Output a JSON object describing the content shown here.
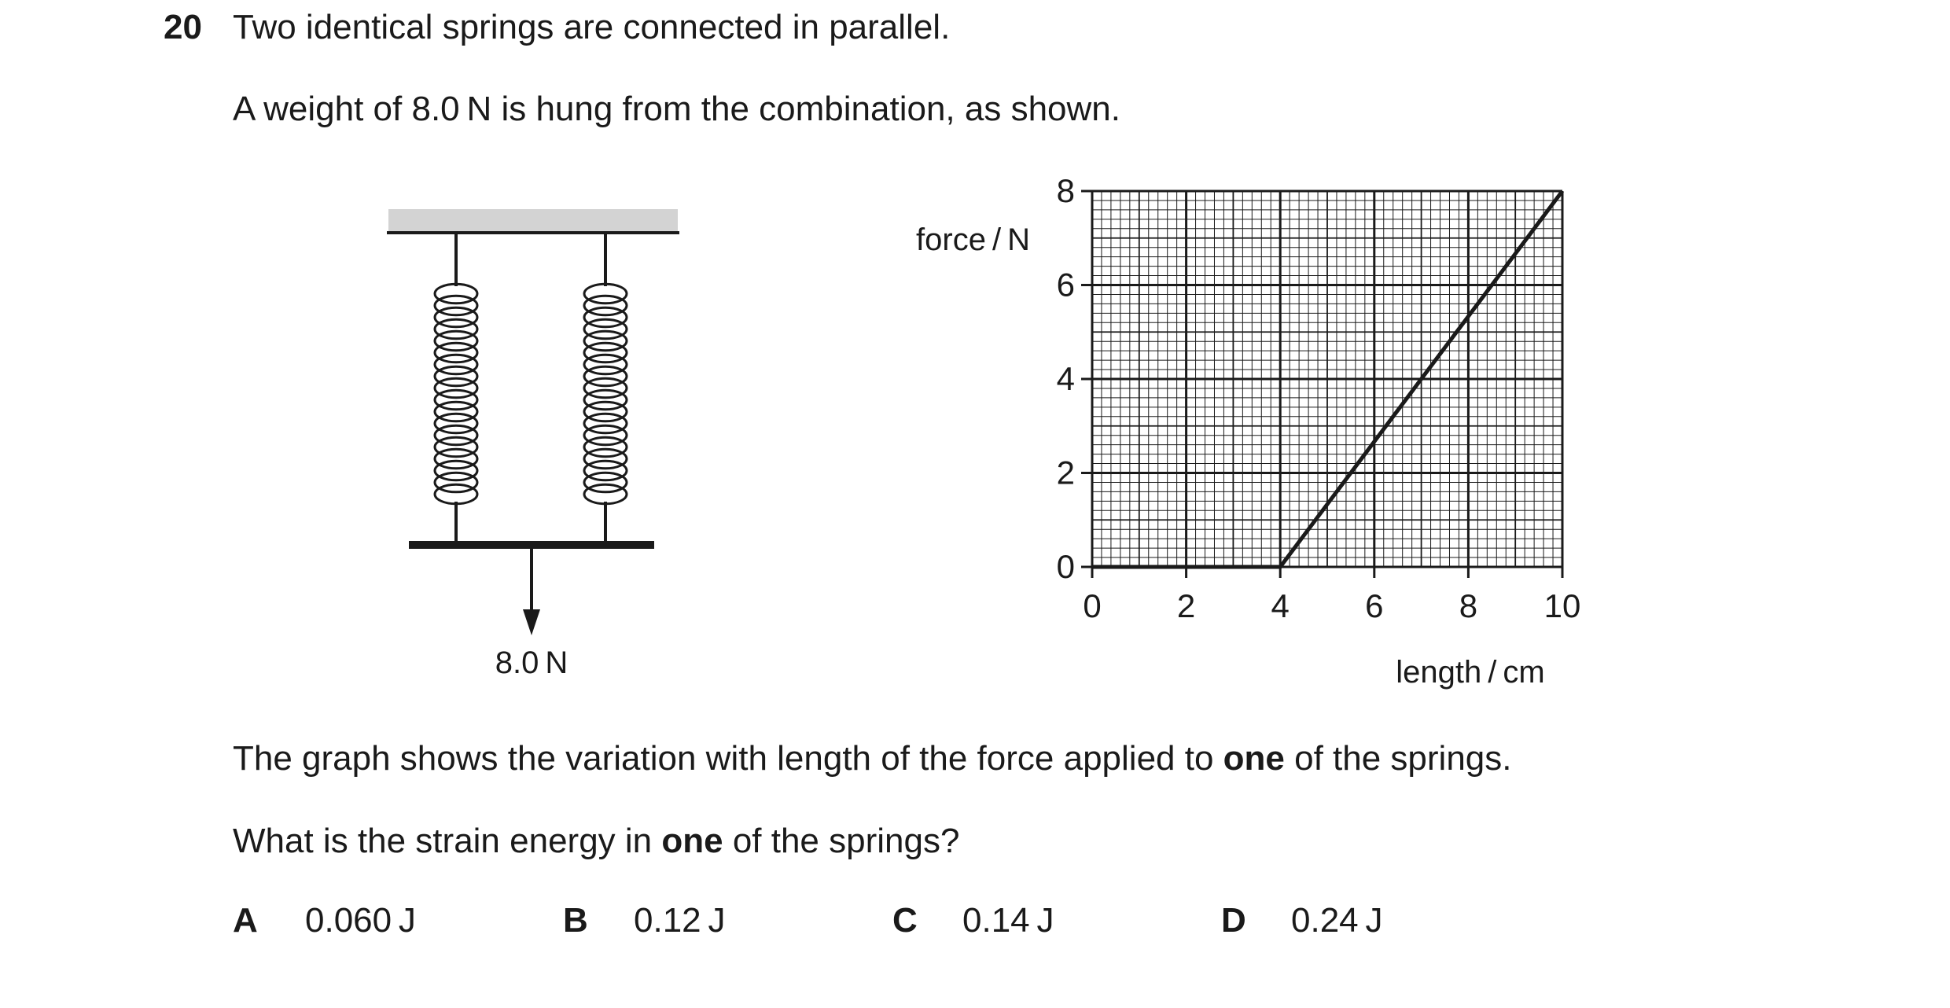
{
  "question": {
    "number": "20",
    "line1": "Two identical springs are connected in parallel.",
    "line2": "A weight of 8.0 N is hung from the combination, as shown.",
    "line3_pre": "The graph shows the variation with length of the force applied to ",
    "line3_bold": "one",
    "line3_post": " of the springs.",
    "line4_pre": "What is the strain energy in ",
    "line4_bold": "one",
    "line4_post": " of the springs?"
  },
  "diagram": {
    "weight_label": "8.0 N"
  },
  "options": [
    {
      "letter": "A",
      "value": "0.060 J"
    },
    {
      "letter": "B",
      "value": "0.12 J"
    },
    {
      "letter": "C",
      "value": "0.14 J"
    },
    {
      "letter": "D",
      "value": "0.24 J"
    }
  ],
  "chart_data": {
    "type": "line",
    "xlabel": "length / cm",
    "ylabel": "force / N",
    "xlim": [
      0,
      10
    ],
    "ylim": [
      0,
      8
    ],
    "x_ticks": [
      "0",
      "2",
      "4",
      "6",
      "8",
      "10"
    ],
    "y_ticks": [
      "0",
      "2",
      "4",
      "6",
      "8"
    ],
    "grid": true,
    "series": [
      {
        "x": [
          0,
          4,
          10
        ],
        "y": [
          0,
          0,
          8
        ]
      }
    ]
  }
}
